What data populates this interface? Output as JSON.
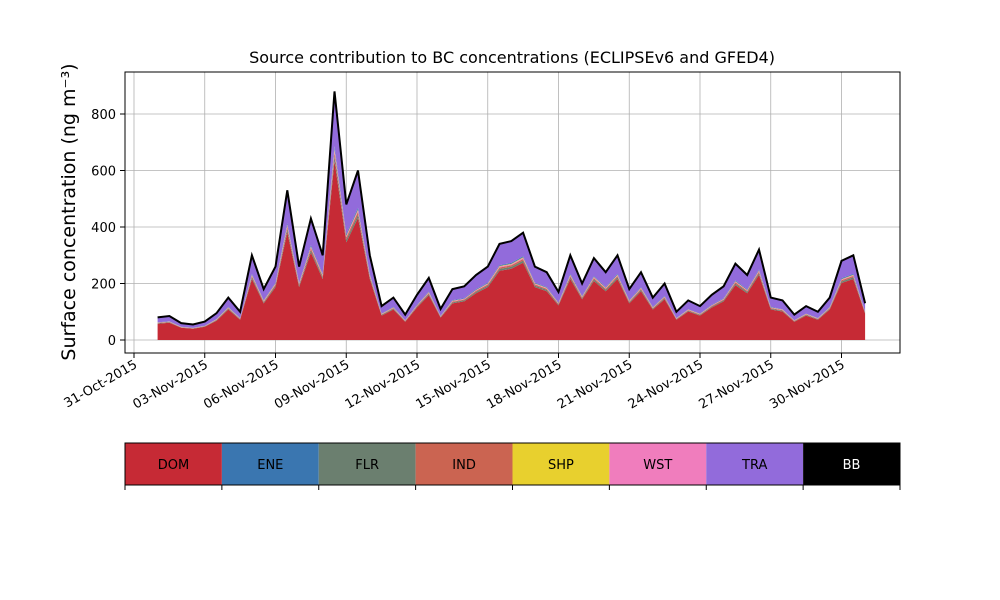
{
  "chart_data": {
    "type": "area",
    "stacked": true,
    "title": "Source contribution to BC concentrations (ECLIPSEv6 and GFED4)",
    "ylabel": "Surface concentration (ng m⁻³)",
    "xlabel": "",
    "grid": true,
    "x_range": [
      "2015-10-31",
      "2015-12-03"
    ],
    "ylim": [
      -40,
      950
    ],
    "x_tick_labels": [
      "31-Oct-2015",
      "03-Nov-2015",
      "06-Nov-2015",
      "09-Nov-2015",
      "12-Nov-2015",
      "15-Nov-2015",
      "18-Nov-2015",
      "21-Nov-2015",
      "24-Nov-2015",
      "27-Nov-2015",
      "30-Nov-2015"
    ],
    "y_tick_labels": [
      "0",
      "200",
      "400",
      "600",
      "800"
    ],
    "y_ticks": [
      0,
      200,
      400,
      600,
      800
    ],
    "legend_position": "below plot (colorbar)",
    "series_colors": {
      "DOM": "#c62a35",
      "ENE": "#3a76b0",
      "FLR": "#6b7f6f",
      "IND": "#cb6451",
      "SHP": "#e8d02e",
      "WST": "#f07dbd",
      "TRA": "#926bdb",
      "BB": "#000000"
    },
    "total_curve": {
      "dates": [
        "2015-11-01",
        "2015-11-01T12",
        "2015-11-02",
        "2015-11-02T12",
        "2015-11-03",
        "2015-11-03T12",
        "2015-11-04",
        "2015-11-04T12",
        "2015-11-05",
        "2015-11-05T12",
        "2015-11-06",
        "2015-11-06T12",
        "2015-11-07",
        "2015-11-07T12",
        "2015-11-08",
        "2015-11-08T12",
        "2015-11-09",
        "2015-11-09T12",
        "2015-11-10",
        "2015-11-10T12",
        "2015-11-11",
        "2015-11-11T12",
        "2015-11-12",
        "2015-11-12T12",
        "2015-11-13",
        "2015-11-13T12",
        "2015-11-14",
        "2015-11-14T12",
        "2015-11-15",
        "2015-11-15T12",
        "2015-11-16",
        "2015-11-16T12",
        "2015-11-17",
        "2015-11-17T12",
        "2015-11-18",
        "2015-11-18T12",
        "2015-11-19",
        "2015-11-19T12",
        "2015-11-20",
        "2015-11-20T12",
        "2015-11-21",
        "2015-11-21T12",
        "2015-11-22",
        "2015-11-22T12",
        "2015-11-23",
        "2015-11-23T12",
        "2015-11-24",
        "2015-11-24T12",
        "2015-11-25",
        "2015-11-25T12",
        "2015-11-26",
        "2015-11-26T12",
        "2015-11-27",
        "2015-11-27T12",
        "2015-11-28",
        "2015-11-28T12",
        "2015-11-29",
        "2015-11-29T12",
        "2015-11-30",
        "2015-11-30T12",
        "2015-12-01"
      ],
      "values": [
        80,
        85,
        60,
        55,
        65,
        95,
        150,
        100,
        300,
        180,
        260,
        530,
        260,
        430,
        300,
        880,
        480,
        600,
        300,
        120,
        150,
        90,
        160,
        220,
        110,
        180,
        190,
        230,
        260,
        340,
        350,
        380,
        260,
        240,
        170,
        300,
        200,
        290,
        240,
        300,
        180,
        240,
        150,
        200,
        100,
        140,
        120,
        160,
        190,
        270,
        230,
        320,
        150,
        140,
        90,
        120,
        100,
        150,
        280,
        300,
        130
      ]
    },
    "approx_dom_fraction": 0.72,
    "approx_tra_fraction": 0.22
  },
  "legend": {
    "items": [
      {
        "label": "DOM",
        "color": "#c62a35",
        "text_color": "#000000"
      },
      {
        "label": "ENE",
        "color": "#3a76b0",
        "text_color": "#000000"
      },
      {
        "label": "FLR",
        "color": "#6b7f6f",
        "text_color": "#000000"
      },
      {
        "label": "IND",
        "color": "#cb6451",
        "text_color": "#000000"
      },
      {
        "label": "SHP",
        "color": "#e8d02e",
        "text_color": "#000000"
      },
      {
        "label": "WST",
        "color": "#f07dbd",
        "text_color": "#000000"
      },
      {
        "label": "TRA",
        "color": "#926bdb",
        "text_color": "#000000"
      },
      {
        "label": "BB",
        "color": "#000000",
        "text_color": "#ffffff"
      }
    ]
  }
}
